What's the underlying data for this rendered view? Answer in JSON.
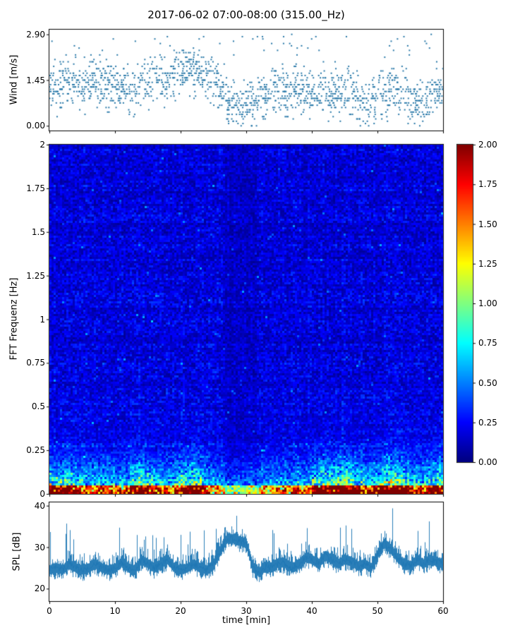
{
  "title": "2017-06-02 07:00-08:00 (315.00_Hz)",
  "chart_data": [
    {
      "type": "scatter",
      "panel": "wind",
      "ylabel": "Wind [m/s]",
      "ylim": [
        -0.15,
        3.05
      ],
      "yticks": [
        "0.00",
        "1.45",
        "2.90"
      ],
      "xlim": [
        0,
        60
      ],
      "marker_color": "#2878a8",
      "wind_mean_per_min": [
        1.3,
        1.25,
        1.35,
        1.3,
        1.2,
        1.3,
        1.4,
        1.25,
        1.3,
        1.35,
        1.2,
        1.3,
        1.15,
        1.25,
        1.4,
        1.35,
        1.5,
        1.45,
        1.6,
        1.75,
        1.7,
        1.85,
        1.75,
        1.6,
        1.5,
        1.35,
        1.05,
        0.75,
        0.65,
        0.6,
        0.7,
        0.8,
        0.95,
        1.1,
        1.15,
        1.05,
        1.0,
        1.15,
        1.1,
        1.0,
        1.1,
        1.15,
        1.05,
        1.1,
        1.15,
        1.1,
        0.95,
        0.8,
        0.75,
        0.9,
        1.1,
        1.15,
        1.1,
        1.0,
        0.95,
        0.8,
        0.7,
        0.75,
        0.85,
        1.2
      ],
      "wind_spread": 0.55
    },
    {
      "type": "heatmap",
      "panel": "spectrogram",
      "ylabel": "FFT Frequenz [Hz]",
      "ylim": [
        0,
        2
      ],
      "yticks": [
        "0",
        "0.25",
        "0.5",
        "0.75",
        "1",
        "1.25",
        "1.5",
        "1.75",
        "2"
      ],
      "xlim": [
        0,
        60
      ],
      "colormap": "jet",
      "clim": [
        0,
        2
      ],
      "colorbar_ticks": [
        "0.00",
        "0.25",
        "0.50",
        "0.75",
        "1.00",
        "1.25",
        "1.50",
        "1.75",
        "2.00"
      ],
      "background_level": 0.17,
      "lowband_decay_hz": 0.12,
      "quiet_band_minutes": [
        26.5,
        31.5
      ],
      "lowband_intensity_per_min": [
        0.85,
        0.75,
        0.9,
        0.85,
        0.7,
        0.6,
        0.55,
        0.6,
        0.65,
        0.6,
        0.55,
        0.6,
        0.75,
        0.9,
        0.85,
        0.7,
        0.6,
        0.55,
        0.6,
        0.7,
        0.85,
        0.9,
        0.85,
        0.7,
        0.6,
        0.55,
        0.45,
        0.35,
        0.4,
        0.35,
        0.4,
        0.35,
        0.5,
        0.45,
        0.5,
        0.55,
        0.5,
        0.55,
        0.5,
        0.55,
        0.8,
        0.9,
        0.85,
        0.9,
        1.0,
        0.95,
        0.85,
        0.75,
        0.6,
        0.7,
        0.9,
        1.0,
        1.0,
        0.9,
        0.8,
        0.7,
        0.6,
        0.7,
        0.8,
        0.9
      ]
    },
    {
      "type": "line",
      "panel": "spl",
      "ylabel": "SPL [dB]",
      "ylim": [
        17,
        40.8
      ],
      "yticks": [
        "20",
        "30",
        "40"
      ],
      "xlabel": "time [min]",
      "xticks": [
        "0",
        "10",
        "20",
        "30",
        "40",
        "50",
        "60"
      ],
      "line_color": "#1f77b4",
      "spl_mean_per_min": [
        24.5,
        25,
        24.5,
        26,
        25,
        24.5,
        25,
        26,
        25,
        24.5,
        25,
        26.5,
        25,
        24.5,
        27,
        26,
        25,
        26,
        27,
        25,
        24.5,
        25,
        26,
        25,
        24.5,
        26,
        29,
        32,
        32,
        31.5,
        31,
        25,
        24,
        25.5,
        25,
        26.5,
        26,
        25,
        26,
        27.5,
        27,
        26,
        28,
        27,
        26,
        27,
        26.5,
        25.5,
        26,
        25,
        28.5,
        31,
        29.5,
        27.5,
        26,
        25.5,
        27,
        26,
        27,
        26.5
      ]
    }
  ]
}
